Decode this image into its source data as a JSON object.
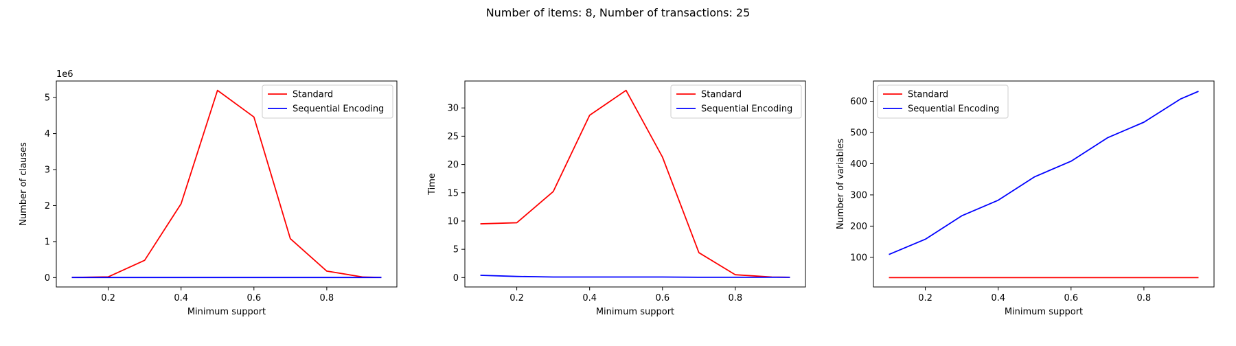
{
  "suptitle": "Number of items: 8, Number of transactions: 25",
  "colors": {
    "standard": "#ff0000",
    "sequential": "#0000ff",
    "axes": "#000000"
  },
  "chart_data": [
    {
      "type": "line",
      "title": "",
      "xlabel": "Minimum support",
      "ylabel": "Number of clauses",
      "offset_text": "1e6",
      "y_scale_factor": 1000000,
      "xlim": [
        0.0575,
        0.9925
      ],
      "ylim": [
        -260000,
        5460000
      ],
      "xticks": [
        0.2,
        0.4,
        0.6,
        0.8
      ],
      "xtick_labels": [
        "0.2",
        "0.4",
        "0.6",
        "0.8"
      ],
      "yticks": [
        0,
        1000000,
        2000000,
        3000000,
        4000000,
        5000000
      ],
      "ytick_labels": [
        "0",
        "1",
        "2",
        "3",
        "4",
        "5"
      ],
      "legend_loc": "upper right",
      "x": [
        0.1,
        0.2,
        0.3,
        0.4,
        0.5,
        0.6,
        0.7,
        0.8,
        0.9,
        0.95
      ],
      "series": [
        {
          "name": "Standard",
          "color": "#ff0000",
          "values": [
            5000,
            20000,
            480000,
            2050000,
            5200000,
            4460000,
            1080000,
            180000,
            15000,
            5000
          ]
        },
        {
          "name": "Sequential Encoding",
          "color": "#0000ff",
          "values": [
            3000,
            3000,
            3000,
            3000,
            3000,
            3000,
            3000,
            3000,
            3000,
            3000
          ]
        }
      ]
    },
    {
      "type": "line",
      "title": "",
      "xlabel": "Minimum support",
      "ylabel": "Time",
      "xlim": [
        0.0575,
        0.9925
      ],
      "ylim": [
        -1.66,
        34.76
      ],
      "xticks": [
        0.2,
        0.4,
        0.6,
        0.8
      ],
      "xtick_labels": [
        "0.2",
        "0.4",
        "0.6",
        "0.8"
      ],
      "yticks": [
        0,
        5,
        10,
        15,
        20,
        25,
        30
      ],
      "ytick_labels": [
        "0",
        "5",
        "10",
        "15",
        "20",
        "25",
        "30"
      ],
      "legend_loc": "upper right",
      "x": [
        0.1,
        0.2,
        0.3,
        0.4,
        0.5,
        0.6,
        0.7,
        0.8,
        0.9,
        0.95
      ],
      "series": [
        {
          "name": "Standard",
          "color": "#ff0000",
          "values": [
            9.5,
            9.7,
            15.2,
            28.7,
            33.1,
            21.3,
            4.4,
            0.5,
            0.1,
            0.05
          ]
        },
        {
          "name": "Sequential Encoding",
          "color": "#0000ff",
          "values": [
            0.4,
            0.2,
            0.1,
            0.1,
            0.1,
            0.1,
            0.05,
            0.05,
            0.05,
            0.05
          ]
        }
      ]
    },
    {
      "type": "line",
      "title": "",
      "xlabel": "Minimum support",
      "ylabel": "Number of variables",
      "xlim": [
        0.0575,
        0.9925
      ],
      "ylim": [
        5,
        665
      ],
      "xticks": [
        0.2,
        0.4,
        0.6,
        0.8
      ],
      "xtick_labels": [
        "0.2",
        "0.4",
        "0.6",
        "0.8"
      ],
      "yticks": [
        100,
        200,
        300,
        400,
        500,
        600
      ],
      "ytick_labels": [
        "100",
        "200",
        "300",
        "400",
        "500",
        "600"
      ],
      "legend_loc": "upper left",
      "x": [
        0.1,
        0.2,
        0.3,
        0.4,
        0.5,
        0.6,
        0.7,
        0.8,
        0.9,
        0.95
      ],
      "series": [
        {
          "name": "Standard",
          "color": "#ff0000",
          "values": [
            35,
            35,
            35,
            35,
            35,
            35,
            35,
            35,
            35,
            35
          ]
        },
        {
          "name": "Sequential Encoding",
          "color": "#0000ff",
          "values": [
            109,
            158,
            233,
            283,
            358,
            408,
            483,
            533,
            607,
            632
          ]
        }
      ]
    }
  ]
}
